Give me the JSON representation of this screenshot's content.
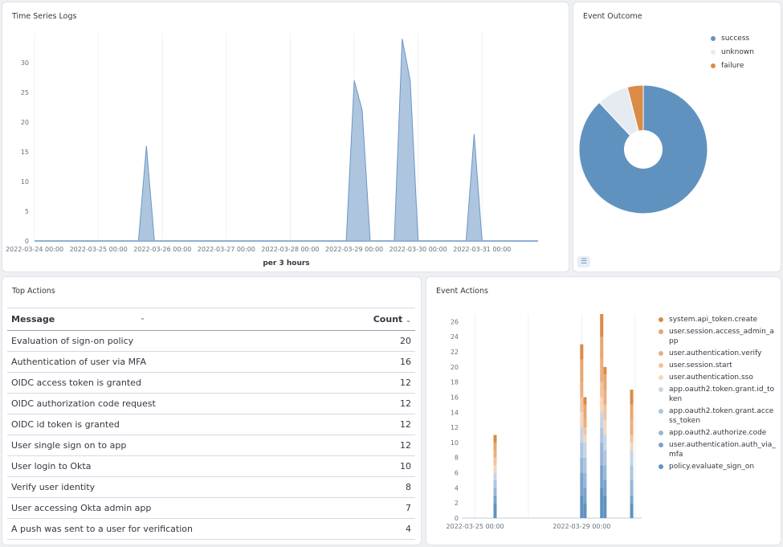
{
  "time_series": {
    "title": "Time Series Logs",
    "x_label": "per 3 hours",
    "chart_data": {
      "type": "area",
      "xlabel": "per 3 hours",
      "ylabel": "",
      "ylim": [
        0,
        35
      ],
      "yticks": [
        0,
        5,
        10,
        15,
        20,
        25,
        30
      ],
      "x_tick_labels": [
        "2022-03-24 00:00",
        "2022-03-25 00:00",
        "2022-03-26 00:00",
        "2022-03-27 00:00",
        "2022-03-28 00:00",
        "2022-03-29 00:00",
        "2022-03-30 00:00",
        "2022-03-31 00:00"
      ],
      "x": [
        "2022-03-24 00:00",
        "2022-03-24 03:00",
        "2022-03-24 06:00",
        "2022-03-24 09:00",
        "2022-03-24 12:00",
        "2022-03-24 15:00",
        "2022-03-24 18:00",
        "2022-03-24 21:00",
        "2022-03-25 00:00",
        "2022-03-25 03:00",
        "2022-03-25 06:00",
        "2022-03-25 09:00",
        "2022-03-25 12:00",
        "2022-03-25 15:00",
        "2022-03-25 18:00",
        "2022-03-25 21:00",
        "2022-03-26 00:00",
        "2022-03-26 03:00",
        "2022-03-26 06:00",
        "2022-03-26 09:00",
        "2022-03-26 12:00",
        "2022-03-26 15:00",
        "2022-03-26 18:00",
        "2022-03-26 21:00",
        "2022-03-27 00:00",
        "2022-03-27 03:00",
        "2022-03-27 06:00",
        "2022-03-27 09:00",
        "2022-03-27 12:00",
        "2022-03-27 15:00",
        "2022-03-27 18:00",
        "2022-03-27 21:00",
        "2022-03-28 00:00",
        "2022-03-28 03:00",
        "2022-03-28 06:00",
        "2022-03-28 09:00",
        "2022-03-28 12:00",
        "2022-03-28 15:00",
        "2022-03-28 18:00",
        "2022-03-28 21:00",
        "2022-03-29 00:00",
        "2022-03-29 03:00",
        "2022-03-29 06:00",
        "2022-03-29 09:00",
        "2022-03-29 12:00",
        "2022-03-29 15:00",
        "2022-03-29 18:00",
        "2022-03-29 21:00",
        "2022-03-30 00:00",
        "2022-03-30 03:00",
        "2022-03-30 06:00",
        "2022-03-30 09:00",
        "2022-03-30 12:00",
        "2022-03-30 15:00",
        "2022-03-30 18:00",
        "2022-03-30 21:00",
        "2022-03-31 00:00",
        "2022-03-31 03:00",
        "2022-03-31 06:00",
        "2022-03-31 09:00",
        "2022-03-31 12:00",
        "2022-03-31 15:00",
        "2022-03-31 18:00",
        "2022-03-31 21:00"
      ],
      "series": [
        {
          "values": [
            0,
            0,
            0,
            0,
            0,
            0,
            0,
            0,
            0,
            0,
            0,
            0,
            0,
            0,
            16,
            0,
            0,
            0,
            0,
            0,
            0,
            0,
            0,
            0,
            0,
            0,
            0,
            0,
            0,
            0,
            0,
            0,
            0,
            0,
            0,
            0,
            0,
            0,
            0,
            0,
            27,
            22,
            0,
            0,
            0,
            0,
            34,
            27,
            0,
            0,
            0,
            0,
            0,
            0,
            0,
            18,
            0,
            0,
            0,
            0,
            0,
            0,
            0,
            0
          ],
          "color": "#a4bfdc"
        }
      ]
    }
  },
  "event_outcome": {
    "title": "Event Outcome",
    "legend_icon": "list-icon",
    "chart_data": {
      "type": "pie",
      "categories": [
        "success",
        "unknown",
        "failure"
      ],
      "values": [
        88,
        8,
        4
      ],
      "colors": [
        "#6092c0",
        "#e6ebf2",
        "#da8b45"
      ],
      "legend_position": "top-right"
    }
  },
  "top_actions": {
    "title": "Top Actions",
    "columns": [
      "Message",
      "Count"
    ],
    "rows": [
      [
        "Evaluation of sign-on policy",
        "20"
      ],
      [
        "Authentication of user via MFA",
        "16"
      ],
      [
        "OIDC access token is granted",
        "12"
      ],
      [
        "OIDC authorization code request",
        "12"
      ],
      [
        "OIDC id token is granted",
        "12"
      ],
      [
        "User single sign on to app",
        "12"
      ],
      [
        "User login to Okta",
        "10"
      ],
      [
        "Verify user identity",
        "8"
      ],
      [
        "User accessing Okta admin app",
        "7"
      ],
      [
        "A push was sent to a user for verification",
        "4"
      ]
    ]
  },
  "event_actions": {
    "title": "Event Actions",
    "chart_data": {
      "type": "bar",
      "stacked": true,
      "ylim": [
        0,
        27
      ],
      "yticks": [
        0,
        2,
        4,
        6,
        8,
        10,
        12,
        14,
        16,
        18,
        20,
        22,
        24,
        26
      ],
      "x_tick_labels": [
        "2022-03-25 00:00",
        "2022-03-29 00:00"
      ],
      "categories": [
        "2022-03-25 18:00",
        "2022-03-29 00:00",
        "2022-03-29 03:00",
        "2022-03-29 18:00",
        "2022-03-29 21:00",
        "2022-03-30 21:00"
      ],
      "series": [
        {
          "name": "system.api_token.create",
          "color": "#da8b45",
          "values": [
            1,
            2,
            1,
            3,
            1,
            2
          ]
        },
        {
          "name": "user.session.access_admin_app",
          "color": "#e7a66f",
          "values": [
            1,
            3,
            2,
            3,
            2,
            2
          ]
        },
        {
          "name": "user.authentication.verify",
          "color": "#eaae7e",
          "values": [
            1,
            2,
            1,
            3,
            2,
            2
          ]
        },
        {
          "name": "user.session.start",
          "color": "#efc49f",
          "values": [
            1,
            2,
            1,
            2,
            2,
            1
          ]
        },
        {
          "name": "user.authentication.sso",
          "color": "#f3d6bd",
          "values": [
            1,
            2,
            1,
            2,
            2,
            1
          ]
        },
        {
          "name": "app.oauth2.token.grant.id_token",
          "color": "#c5d5e8",
          "values": [
            1,
            2,
            2,
            2,
            2,
            2
          ]
        },
        {
          "name": "app.oauth2.token.grant.access_token",
          "color": "#aec5e0",
          "values": [
            1,
            2,
            2,
            2,
            2,
            2
          ]
        },
        {
          "name": "app.oauth2.authorize.code",
          "color": "#97b6d8",
          "values": [
            1,
            2,
            2,
            3,
            2,
            2
          ]
        },
        {
          "name": "user.authentication.auth_via_mfa",
          "color": "#7aa2cc",
          "values": [
            1,
            3,
            2,
            3,
            2,
            1
          ]
        },
        {
          "name": "policy.evaluate_sign_on",
          "color": "#6092c0",
          "values": [
            2,
            3,
            2,
            4,
            3,
            2
          ]
        }
      ]
    }
  }
}
